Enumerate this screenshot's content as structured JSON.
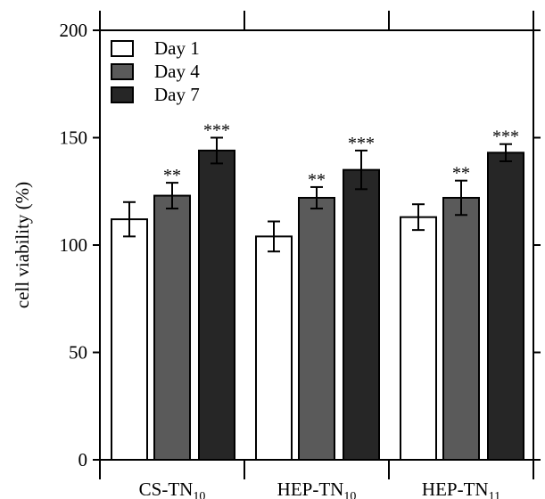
{
  "chart_data": {
    "type": "bar",
    "title": "",
    "xlabel": "",
    "ylabel": "cell viability (%)",
    "ylim": [
      0,
      200
    ],
    "yticks": [
      0,
      50,
      100,
      150,
      200
    ],
    "categories": [
      {
        "base": "CS-TN",
        "sub": "10"
      },
      {
        "base": "HEP-TN",
        "sub": "10"
      },
      {
        "base": "HEP-TN",
        "sub": "11"
      }
    ],
    "legend_position": "top-left",
    "series": [
      {
        "name": "Day 1",
        "color": "#ffffff",
        "values": [
          112,
          104,
          113
        ],
        "errors": [
          8,
          7,
          6
        ],
        "significance": [
          "",
          "",
          ""
        ]
      },
      {
        "name": "Day 4",
        "color": "#5a5a5a",
        "values": [
          123,
          122,
          122
        ],
        "errors": [
          6,
          5,
          8
        ],
        "significance": [
          "**",
          "**",
          "**"
        ]
      },
      {
        "name": "Day 7",
        "color": "#262626",
        "values": [
          144,
          135,
          143
        ],
        "errors": [
          6,
          9,
          4
        ],
        "significance": [
          "***",
          "***",
          "***"
        ]
      }
    ]
  }
}
